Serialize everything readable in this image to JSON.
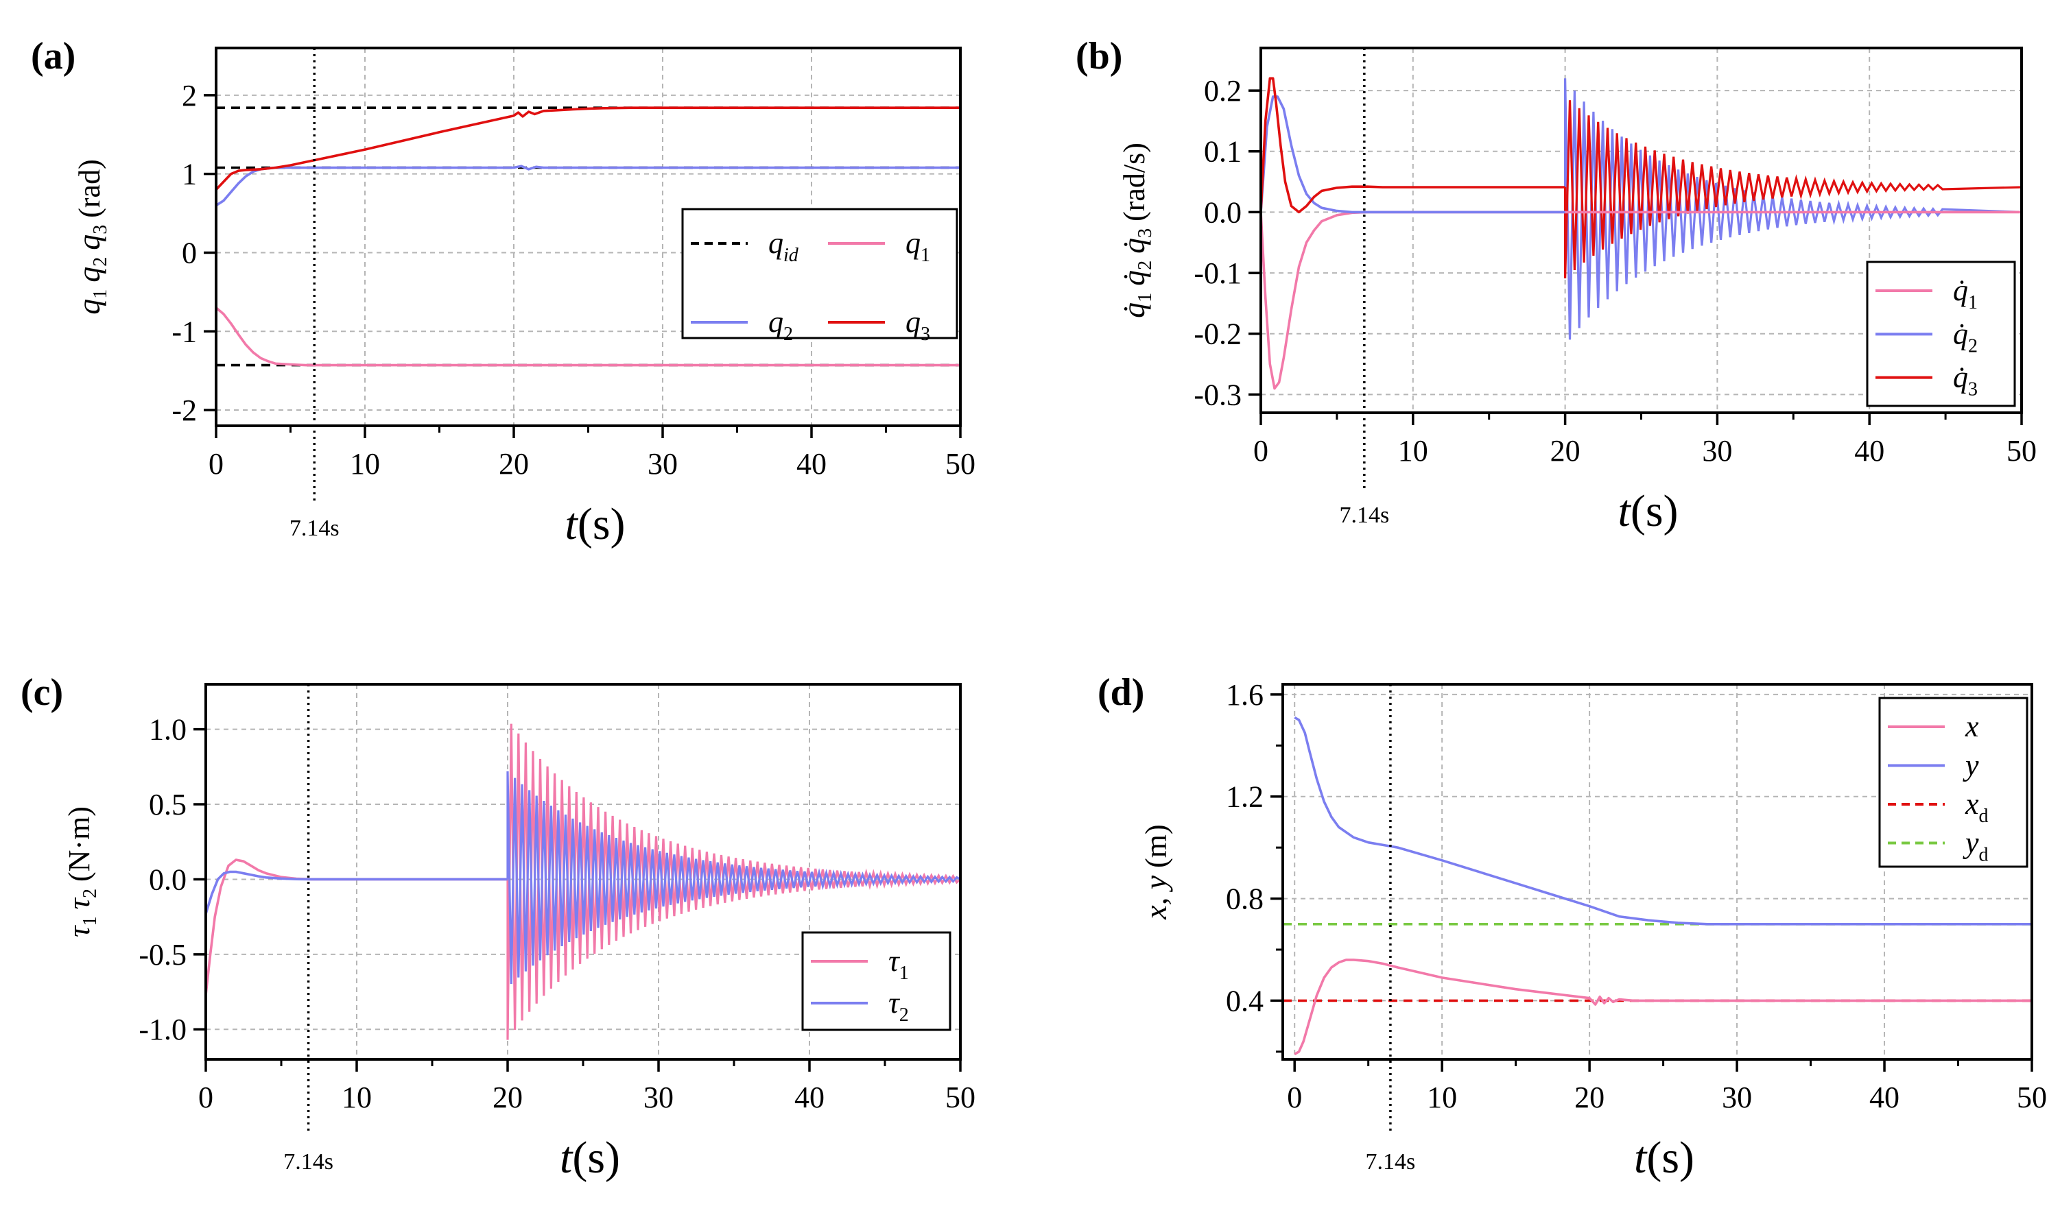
{
  "chart_data": [
    {
      "panel_label": "(a)",
      "type": "line",
      "xlabel_var": "t",
      "xlabel_unit": "(s)",
      "ylabel": "q1 q2 q3 (rad)",
      "ylabel_unit": "(rad)",
      "xlim": [
        0,
        50
      ],
      "ylim": [
        -2.2,
        2.6
      ],
      "xticks": [
        0,
        10,
        20,
        30,
        40,
        50
      ],
      "yticks": [
        -2,
        -1,
        0,
        1,
        2
      ],
      "ytick_labels": [
        "-2",
        "-1",
        "0",
        "1",
        "2"
      ],
      "grid": true,
      "annotation": "7.14s",
      "vline_x": 6.6,
      "legend": [
        {
          "main": "q",
          "sub": "id",
          "color": "#000000",
          "dash": true
        },
        {
          "main": "q",
          "sub": "1",
          "color": "#f279a9"
        },
        {
          "main": "q",
          "sub": "2",
          "color": "#7b7ef0"
        },
        {
          "main": "q",
          "sub": "3",
          "color": "#e01010"
        }
      ],
      "legend_position": "center-right",
      "series": [
        {
          "name": "q_id",
          "color": "#000000",
          "dash": true,
          "x": [
            0,
            50
          ],
          "y": [
            1.84,
            1.84
          ]
        },
        {
          "name": "q_id",
          "color": "#000000",
          "dash": true,
          "x": [
            0,
            50
          ],
          "y": [
            1.08,
            1.08
          ]
        },
        {
          "name": "q_id",
          "color": "#000000",
          "dash": true,
          "x": [
            0,
            50
          ],
          "y": [
            -1.43,
            -1.43
          ]
        },
        {
          "name": "q1",
          "color": "#f279a9",
          "x": [
            0,
            0.5,
            1,
            1.5,
            2,
            2.5,
            3,
            3.5,
            4,
            5,
            6,
            8,
            10,
            20,
            30,
            40,
            50
          ],
          "y": [
            -0.7,
            -0.78,
            -0.9,
            -1.04,
            -1.17,
            -1.27,
            -1.34,
            -1.38,
            -1.41,
            -1.42,
            -1.43,
            -1.43,
            -1.43,
            -1.43,
            -1.43,
            -1.43,
            -1.43
          ]
        },
        {
          "name": "q2",
          "color": "#7b7ef0",
          "x": [
            0,
            0.5,
            1,
            1.5,
            2,
            2.5,
            3,
            3.5,
            4,
            5,
            6,
            8,
            10,
            20,
            20.5,
            21,
            21.5,
            22,
            30,
            40,
            50
          ],
          "y": [
            0.6,
            0.66,
            0.77,
            0.88,
            0.97,
            1.03,
            1.06,
            1.07,
            1.08,
            1.08,
            1.08,
            1.08,
            1.08,
            1.08,
            1.1,
            1.06,
            1.09,
            1.08,
            1.08,
            1.08,
            1.08
          ]
        },
        {
          "name": "q3",
          "color": "#e01010",
          "x": [
            0,
            0.5,
            1,
            1.5,
            2,
            3,
            4,
            5,
            6,
            7,
            10,
            15,
            20,
            20.3,
            20.6,
            21,
            21.4,
            22,
            23,
            24,
            25,
            26,
            28,
            30,
            40,
            50
          ],
          "y": [
            0.8,
            0.9,
            1.0,
            1.04,
            1.05,
            1.06,
            1.08,
            1.11,
            1.15,
            1.19,
            1.31,
            1.53,
            1.74,
            1.78,
            1.73,
            1.79,
            1.76,
            1.8,
            1.81,
            1.82,
            1.83,
            1.835,
            1.84,
            1.84,
            1.84,
            1.84
          ]
        }
      ]
    },
    {
      "panel_label": "(b)",
      "type": "line",
      "xlabel_var": "t",
      "xlabel_unit": "(s)",
      "ylabel": "q̇1 q̇2 q̇3 (rad/s)",
      "ylabel_unit": "(rad/s)",
      "xlim": [
        0,
        50
      ],
      "ylim": [
        -0.33,
        0.27
      ],
      "xticks": [
        0,
        10,
        20,
        30,
        40,
        50
      ],
      "yticks": [
        -0.3,
        -0.2,
        -0.1,
        0.0,
        0.1,
        0.2
      ],
      "ytick_labels": [
        "-0.3",
        "-0.2",
        "-0.1",
        "0.0",
        "0.1",
        "0.2"
      ],
      "grid": true,
      "annotation": "7.14s",
      "vline_x": 6.8,
      "legend": [
        {
          "main": "q̇",
          "sub": "1",
          "color": "#f279a9"
        },
        {
          "main": "q̇",
          "sub": "2",
          "color": "#7b7ef0"
        },
        {
          "main": "q̇",
          "sub": "3",
          "color": "#e01010"
        }
      ],
      "legend_position": "lower-right",
      "series": [
        {
          "name": "q̇1",
          "color": "#f279a9",
          "x": [
            0,
            0.3,
            0.6,
            0.9,
            1.2,
            1.5,
            2,
            2.5,
            3,
            3.5,
            4,
            5,
            6,
            7,
            10,
            50
          ],
          "y": [
            0,
            -0.14,
            -0.25,
            -0.29,
            -0.28,
            -0.24,
            -0.16,
            -0.09,
            -0.05,
            -0.03,
            -0.015,
            -0.005,
            -0.001,
            0,
            0,
            0
          ]
        },
        {
          "name": "q̇2",
          "color": "#7b7ef0",
          "x": [
            0,
            0.4,
            0.8,
            1.1,
            1.5,
            2,
            2.5,
            3,
            3.5,
            4,
            5,
            6,
            7,
            10,
            20
          ],
          "y": [
            0,
            0.14,
            0.19,
            0.19,
            0.17,
            0.11,
            0.06,
            0.03,
            0.015,
            0.007,
            0.002,
            0,
            0,
            0,
            0
          ]
        },
        {
          "name": "q̇3",
          "color": "#e01010",
          "x": [
            0,
            0.3,
            0.6,
            0.8,
            1.0,
            1.3,
            1.6,
            2.0,
            2.5,
            3.0,
            3.5,
            4,
            5,
            6,
            7,
            8,
            10,
            20
          ],
          "y": [
            0,
            0.15,
            0.22,
            0.22,
            0.18,
            0.11,
            0.05,
            0.01,
            0.0,
            0.01,
            0.025,
            0.035,
            0.04,
            0.042,
            0.042,
            0.041,
            0.041,
            0.041
          ]
        }
      ],
      "oscillation": {
        "start": 20,
        "end": 45,
        "period": 0.62,
        "q2_amp": 0.22,
        "q3_amp": 0.15,
        "q3_center": 0.041,
        "decay_tau": 6.5
      }
    },
    {
      "panel_label": "(c)",
      "type": "line",
      "xlabel_var": "t",
      "xlabel_unit": "(s)",
      "ylabel": "τ1 τ2 (N·m)",
      "ylabel_unit": "(N·m)",
      "xlim": [
        0,
        50
      ],
      "ylim": [
        -1.2,
        1.3
      ],
      "xticks": [
        0,
        10,
        20,
        30,
        40,
        50
      ],
      "yticks": [
        -1.0,
        -0.5,
        0.0,
        0.5,
        1.0
      ],
      "ytick_labels": [
        "-1.0",
        "-0.5",
        "0.0",
        "0.5",
        "1.0"
      ],
      "grid": true,
      "annotation": "7.14s",
      "vline_x": 6.8,
      "legend": [
        {
          "main": "τ",
          "sub": "1",
          "color": "#f279a9"
        },
        {
          "main": "τ",
          "sub": "2",
          "color": "#7b7ef0"
        }
      ],
      "legend_position": "lower-right",
      "series": [
        {
          "name": "τ1",
          "color": "#f279a9",
          "x": [
            0,
            0.3,
            0.6,
            1.0,
            1.5,
            2,
            2.5,
            3,
            3.5,
            4,
            5,
            6,
            7,
            20
          ],
          "y": [
            -0.77,
            -0.5,
            -0.25,
            -0.05,
            0.09,
            0.13,
            0.12,
            0.09,
            0.06,
            0.04,
            0.015,
            0.004,
            0,
            0
          ]
        },
        {
          "name": "τ2",
          "color": "#7b7ef0",
          "x": [
            0,
            0.4,
            0.8,
            1.2,
            1.6,
            2,
            2.5,
            3,
            3.5,
            4,
            5,
            6,
            7,
            20
          ],
          "y": [
            -0.23,
            -0.1,
            0.0,
            0.04,
            0.05,
            0.05,
            0.04,
            0.03,
            0.02,
            0.012,
            0.005,
            0.001,
            0,
            0
          ]
        }
      ],
      "oscillation": {
        "start": 20,
        "end": 50,
        "period": 0.48,
        "tau1_amp": 1.07,
        "tau2_amp": 0.72,
        "decay_tau": 7.5
      }
    },
    {
      "panel_label": "(d)",
      "type": "line",
      "xlabel_var": "t",
      "xlabel_unit": "(s)",
      "ylabel": "x, y (m)",
      "ylabel_unit": "(m)",
      "xlim": [
        -0.8,
        50
      ],
      "ylim": [
        0.17,
        1.64
      ],
      "xticks": [
        0,
        10,
        20,
        30,
        40,
        50
      ],
      "yticks": [
        0.4,
        0.8,
        1.2,
        1.6
      ],
      "ytick_labels": [
        "0.4",
        "0.8",
        "1.2",
        "1.6"
      ],
      "grid": true,
      "annotation": "7.14s",
      "vline_x": 6.5,
      "legend": [
        {
          "main": "x",
          "sub": "",
          "color": "#f279a9"
        },
        {
          "main": "y",
          "sub": "",
          "color": "#7b7ef0"
        },
        {
          "main": "x",
          "sub": "d",
          "color": "#e01010",
          "dash": true
        },
        {
          "main": "y",
          "sub": "d",
          "color": "#7ac943",
          "dash": true
        }
      ],
      "legend_position": "top-right",
      "series": [
        {
          "name": "x_d",
          "color": "#e01010",
          "dash": true,
          "x": [
            -0.8,
            50
          ],
          "y": [
            0.4,
            0.4
          ]
        },
        {
          "name": "y_d",
          "color": "#7ac943",
          "dash": true,
          "x": [
            -0.8,
            50
          ],
          "y": [
            0.7,
            0.7
          ]
        },
        {
          "name": "x",
          "color": "#f279a9",
          "x": [
            0,
            0.3,
            0.6,
            1,
            1.5,
            2,
            2.5,
            3,
            3.5,
            4,
            5,
            6,
            7,
            10,
            15,
            20,
            20.4,
            20.7,
            21,
            21.3,
            21.6,
            22,
            23,
            25,
            30,
            40,
            50
          ],
          "y": [
            0.19,
            0.2,
            0.24,
            0.32,
            0.42,
            0.49,
            0.53,
            0.55,
            0.56,
            0.56,
            0.555,
            0.545,
            0.53,
            0.49,
            0.445,
            0.41,
            0.385,
            0.415,
            0.39,
            0.41,
            0.395,
            0.405,
            0.4,
            0.4,
            0.4,
            0.4,
            0.4
          ]
        },
        {
          "name": "y",
          "color": "#7b7ef0",
          "x": [
            0,
            0.3,
            0.7,
            1,
            1.5,
            2,
            2.5,
            3,
            4,
            5,
            6,
            7,
            10,
            15,
            20,
            22,
            24,
            26,
            28,
            30,
            40,
            50
          ],
          "y": [
            1.51,
            1.5,
            1.45,
            1.38,
            1.27,
            1.18,
            1.12,
            1.08,
            1.04,
            1.02,
            1.01,
            1.0,
            0.95,
            0.86,
            0.77,
            0.73,
            0.715,
            0.705,
            0.7,
            0.7,
            0.7,
            0.7
          ]
        }
      ]
    }
  ]
}
